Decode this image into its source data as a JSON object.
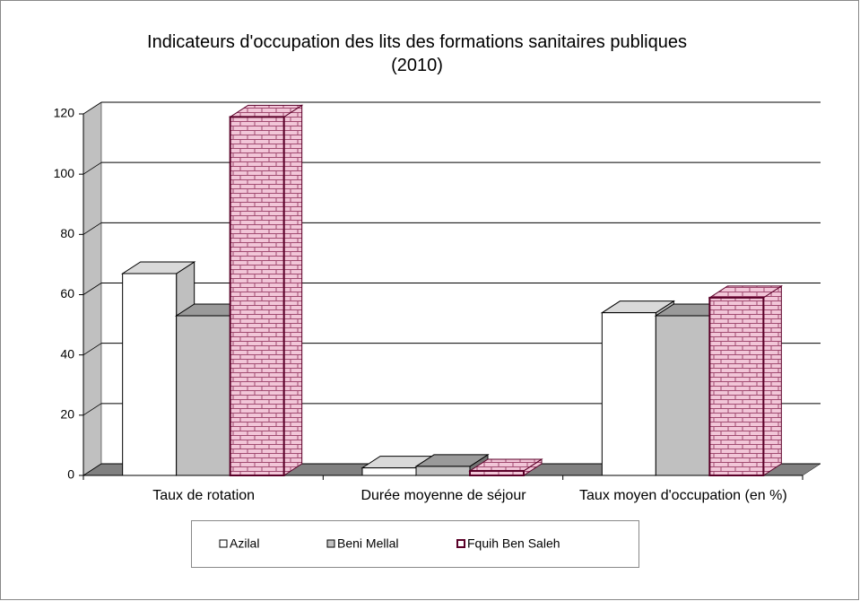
{
  "chart_data": {
    "type": "bar3d",
    "title": "Indicateurs d'occupation des lits des formations sanitaires publiques (2010)",
    "categories": [
      "Taux de rotation",
      "Durée moyenne de séjour",
      "Taux moyen d'occupation (en %)"
    ],
    "series": [
      {
        "name": "Azilal",
        "color": "#ffffff",
        "values": [
          67,
          2.5,
          54
        ]
      },
      {
        "name": "Beni Mellal",
        "color": "#c0c0c0",
        "values": [
          53,
          3,
          53
        ]
      },
      {
        "name": "Fquih Ben Saleh",
        "color": "#f2c6d8",
        "pattern": "brick",
        "values": [
          119,
          1.5,
          59
        ]
      }
    ],
    "ylim": [
      0,
      120
    ],
    "yticks": [
      0,
      20,
      40,
      60,
      80,
      100,
      120
    ],
    "grid": true
  }
}
